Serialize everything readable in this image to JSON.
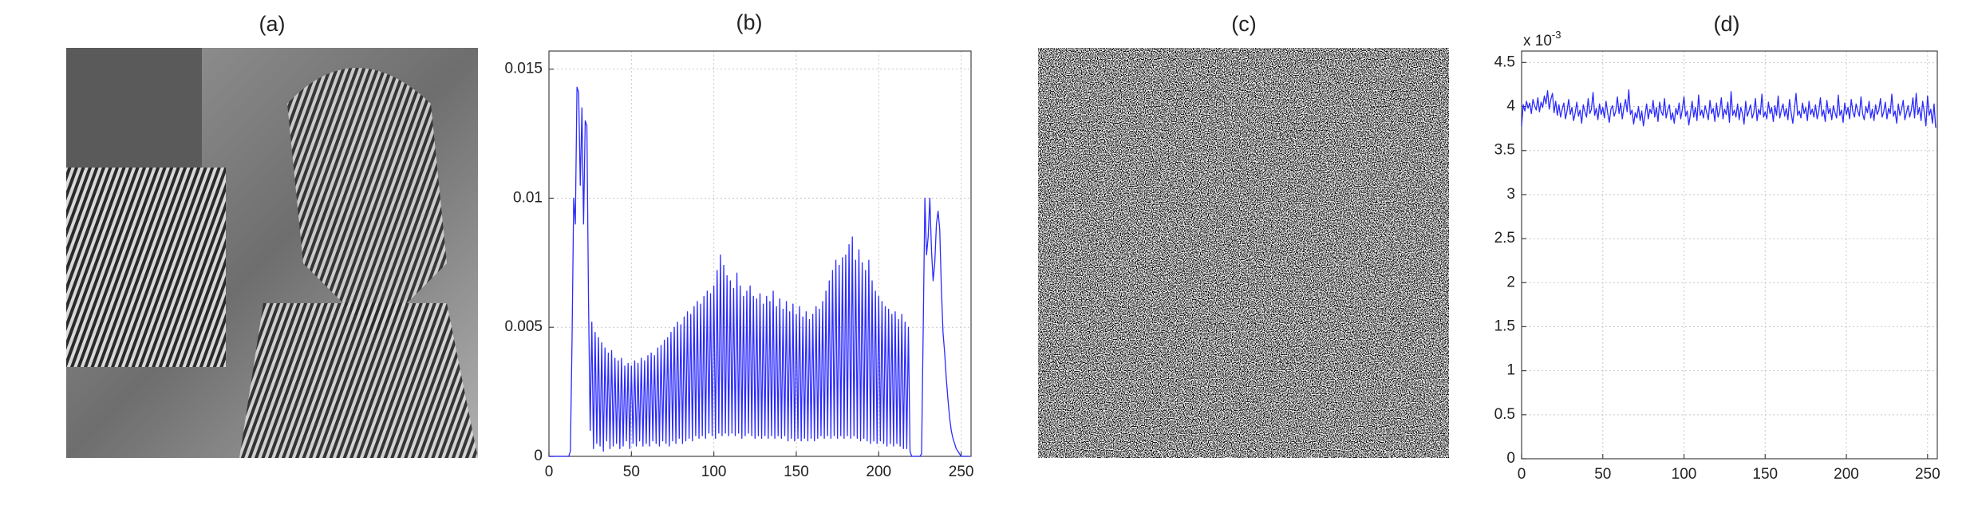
{
  "chart_data": [
    {
      "type": "image",
      "title": "(a)"
    },
    {
      "type": "line",
      "title": "(b)",
      "color": "#2b2bff",
      "grid": true,
      "xlim": [
        0,
        256
      ],
      "ylim": [
        0,
        0.0157
      ],
      "xticks": [
        0,
        50,
        100,
        150,
        200,
        250
      ],
      "yticks": [
        0,
        0.005,
        0.01,
        0.015
      ],
      "x": [
        0,
        1,
        2,
        3,
        4,
        5,
        6,
        7,
        8,
        9,
        10,
        11,
        12,
        13,
        14,
        15,
        16,
        17,
        18,
        19,
        20,
        21,
        22,
        23,
        24,
        25,
        26,
        27,
        28,
        29,
        30,
        31,
        32,
        33,
        34,
        35,
        36,
        37,
        38,
        39,
        40,
        41,
        42,
        43,
        44,
        45,
        46,
        47,
        48,
        49,
        50,
        51,
        52,
        53,
        54,
        55,
        56,
        57,
        58,
        59,
        60,
        61,
        62,
        63,
        64,
        65,
        66,
        67,
        68,
        69,
        70,
        71,
        72,
        73,
        74,
        75,
        76,
        77,
        78,
        79,
        80,
        81,
        82,
        83,
        84,
        85,
        86,
        87,
        88,
        89,
        90,
        91,
        92,
        93,
        94,
        95,
        96,
        97,
        98,
        99,
        100,
        101,
        102,
        103,
        104,
        105,
        106,
        107,
        108,
        109,
        110,
        111,
        112,
        113,
        114,
        115,
        116,
        117,
        118,
        119,
        120,
        121,
        122,
        123,
        124,
        125,
        126,
        127,
        128,
        129,
        130,
        131,
        132,
        133,
        134,
        135,
        136,
        137,
        138,
        139,
        140,
        141,
        142,
        143,
        144,
        145,
        146,
        147,
        148,
        149,
        150,
        151,
        152,
        153,
        154,
        155,
        156,
        157,
        158,
        159,
        160,
        161,
        162,
        163,
        164,
        165,
        166,
        167,
        168,
        169,
        170,
        171,
        172,
        173,
        174,
        175,
        176,
        177,
        178,
        179,
        180,
        181,
        182,
        183,
        184,
        185,
        186,
        187,
        188,
        189,
        190,
        191,
        192,
        193,
        194,
        195,
        196,
        197,
        198,
        199,
        200,
        201,
        202,
        203,
        204,
        205,
        206,
        207,
        208,
        209,
        210,
        211,
        212,
        213,
        214,
        215,
        216,
        217,
        218,
        219,
        220,
        221,
        222,
        223,
        224,
        225,
        226,
        227,
        228,
        229,
        230,
        231,
        232,
        233,
        234,
        235,
        236,
        237,
        238,
        239,
        240,
        241,
        242,
        243,
        244,
        245,
        246,
        247,
        248,
        249,
        250,
        251,
        252,
        253,
        254,
        255
      ],
      "values": [
        0,
        0,
        0,
        0,
        0,
        0,
        0,
        0,
        0,
        0,
        0,
        0,
        0,
        0.0002,
        0.0045,
        0.01,
        0.009,
        0.0143,
        0.0141,
        0.0105,
        0.0135,
        0.009,
        0.013,
        0.0128,
        0.006,
        0.001,
        0.0052,
        0.0003,
        0.0048,
        0.0005,
        0.0046,
        0.0004,
        0.0044,
        0.0002,
        0.0042,
        0.0006,
        0.004,
        0.0003,
        0.0041,
        0.0004,
        0.0038,
        0.0005,
        0.0037,
        0.0003,
        0.0038,
        0.0004,
        0.0035,
        0.0006,
        0.0036,
        0.0003,
        0.0035,
        0.0005,
        0.0037,
        0.0004,
        0.0036,
        0.0006,
        0.0038,
        0.0004,
        0.0037,
        0.0005,
        0.0039,
        0.0004,
        0.004,
        0.0006,
        0.0039,
        0.0005,
        0.0042,
        0.0004,
        0.0043,
        0.0006,
        0.0045,
        0.0005,
        0.0046,
        0.0004,
        0.0048,
        0.0006,
        0.005,
        0.0005,
        0.0052,
        0.0007,
        0.0051,
        0.0005,
        0.0054,
        0.0006,
        0.0056,
        0.0007,
        0.0055,
        0.0006,
        0.0058,
        0.0008,
        0.006,
        0.0007,
        0.0059,
        0.0008,
        0.0062,
        0.0007,
        0.0064,
        0.0009,
        0.0063,
        0.0008,
        0.0066,
        0.0007,
        0.0072,
        0.0009,
        0.0078,
        0.0008,
        0.0074,
        0.0009,
        0.007,
        0.0008,
        0.0068,
        0.0009,
        0.0065,
        0.0008,
        0.0071,
        0.0009,
        0.0066,
        0.0007,
        0.0062,
        0.0008,
        0.0064,
        0.0009,
        0.0066,
        0.0008,
        0.0062,
        0.0007,
        0.0061,
        0.0008,
        0.0063,
        0.0007,
        0.0059,
        0.0008,
        0.0062,
        0.0007,
        0.006,
        0.0008,
        0.0064,
        0.0007,
        0.0058,
        0.0008,
        0.0061,
        0.0007,
        0.0057,
        0.0008,
        0.006,
        0.0006,
        0.0056,
        0.0007,
        0.0059,
        0.0006,
        0.0055,
        0.0007,
        0.0058,
        0.0006,
        0.0054,
        0.0007,
        0.0056,
        0.0006,
        0.0053,
        0.0007,
        0.0055,
        0.0006,
        0.0058,
        0.0007,
        0.0057,
        0.0008,
        0.006,
        0.0007,
        0.0064,
        0.0008,
        0.0068,
        0.0007,
        0.0072,
        0.0008,
        0.0076,
        0.0007,
        0.0074,
        0.0008,
        0.0077,
        0.0007,
        0.0078,
        0.0008,
        0.0082,
        0.0007,
        0.0085,
        0.0008,
        0.0076,
        0.0007,
        0.008,
        0.0006,
        0.0075,
        0.0007,
        0.0072,
        0.0006,
        0.0076,
        0.0005,
        0.0068,
        0.0006,
        0.0064,
        0.0005,
        0.0062,
        0.0006,
        0.006,
        0.0005,
        0.0058,
        0.0004,
        0.0057,
        0.0005,
        0.0055,
        0.0004,
        0.0056,
        0.0005,
        0.0053,
        0.0004,
        0.0055,
        0.0003,
        0.0052,
        0.0003,
        0.005,
        0.0002,
        0,
        0,
        0,
        0,
        0,
        0,
        0.0001,
        0.005,
        0.01,
        0.0078,
        0.0085,
        0.01,
        0.008,
        0.0068,
        0.0075,
        0.009,
        0.0095,
        0.0088,
        0.0065,
        0.0048,
        0.004,
        0.003,
        0.0022,
        0.0015,
        0.001,
        0.0007,
        0.0005,
        0.0003,
        0.0002,
        0.0001,
        0,
        0,
        0,
        0,
        0,
        0
      ]
    },
    {
      "type": "image",
      "title": "(c)"
    },
    {
      "type": "line",
      "title": "(d)",
      "color": "#2b2bff",
      "grid": true,
      "y_multiplier": "x 10",
      "y_multiplier_exponent": "-3",
      "xlim": [
        0,
        256
      ],
      "ylim": [
        0,
        4.63
      ],
      "xticks": [
        0,
        50,
        100,
        150,
        200,
        250
      ],
      "yticks": [
        0,
        0.5,
        1,
        1.5,
        2,
        2.5,
        3,
        3.5,
        4,
        4.5
      ],
      "x": [
        0,
        1,
        2,
        3,
        4,
        5,
        6,
        7,
        8,
        9,
        10,
        11,
        12,
        13,
        14,
        15,
        16,
        17,
        18,
        19,
        20,
        21,
        22,
        23,
        24,
        25,
        26,
        27,
        28,
        29,
        30,
        31,
        32,
        33,
        34,
        35,
        36,
        37,
        38,
        39,
        40,
        41,
        42,
        43,
        44,
        45,
        46,
        47,
        48,
        49,
        50,
        51,
        52,
        53,
        54,
        55,
        56,
        57,
        58,
        59,
        60,
        61,
        62,
        63,
        64,
        65,
        66,
        67,
        68,
        69,
        70,
        71,
        72,
        73,
        74,
        75,
        76,
        77,
        78,
        79,
        80,
        81,
        82,
        83,
        84,
        85,
        86,
        87,
        88,
        89,
        90,
        91,
        92,
        93,
        94,
        95,
        96,
        97,
        98,
        99,
        100,
        101,
        102,
        103,
        104,
        105,
        106,
        107,
        108,
        109,
        110,
        111,
        112,
        113,
        114,
        115,
        116,
        117,
        118,
        119,
        120,
        121,
        122,
        123,
        124,
        125,
        126,
        127,
        128,
        129,
        130,
        131,
        132,
        133,
        134,
        135,
        136,
        137,
        138,
        139,
        140,
        141,
        142,
        143,
        144,
        145,
        146,
        147,
        148,
        149,
        150,
        151,
        152,
        153,
        154,
        155,
        156,
        157,
        158,
        159,
        160,
        161,
        162,
        163,
        164,
        165,
        166,
        167,
        168,
        169,
        170,
        171,
        172,
        173,
        174,
        175,
        176,
        177,
        178,
        179,
        180,
        181,
        182,
        183,
        184,
        185,
        186,
        187,
        188,
        189,
        190,
        191,
        192,
        193,
        194,
        195,
        196,
        197,
        198,
        199,
        200,
        201,
        202,
        203,
        204,
        205,
        206,
        207,
        208,
        209,
        210,
        211,
        212,
        213,
        214,
        215,
        216,
        217,
        218,
        219,
        220,
        221,
        222,
        223,
        224,
        225,
        226,
        227,
        228,
        229,
        230,
        231,
        232,
        233,
        234,
        235,
        236,
        237,
        238,
        239,
        240,
        241,
        242,
        243,
        244,
        245,
        246,
        247,
        248,
        249,
        250,
        251,
        252,
        253,
        254,
        255
      ],
      "values": [
        3.78,
        4.02,
        3.95,
        4.06,
        3.98,
        4.04,
        3.92,
        4.08,
        4.01,
        3.96,
        4.1,
        3.94,
        4.05,
        3.99,
        4.12,
        4.03,
        4.18,
        3.97,
        4.08,
        4.15,
        3.93,
        4.06,
        3.9,
        4.02,
        3.88,
        3.97,
        4.04,
        3.86,
        3.95,
        4.08,
        3.91,
        3.99,
        3.84,
        3.93,
        4.05,
        3.89,
        3.96,
        3.81,
        4.02,
        3.94,
        3.88,
        4.09,
        3.92,
        3.97,
        4.16,
        3.9,
        3.98,
        3.85,
        4.03,
        3.91,
        3.99,
        3.87,
        4.06,
        3.93,
        3.82,
        3.97,
        4.01,
        3.89,
        3.95,
        4.11,
        3.92,
        4.04,
        3.86,
        3.99,
        4.08,
        3.94,
        4.19,
        3.91,
        3.96,
        3.8,
        3.93,
        3.87,
        4.0,
        3.84,
        3.95,
        3.78,
        3.9,
        4.03,
        3.86,
        3.97,
        3.92,
        4.07,
        3.88,
        3.99,
        3.83,
        4.05,
        3.94,
        3.9,
        4.09,
        3.87,
        3.96,
        4.02,
        3.85,
        3.93,
        3.81,
        3.98,
        3.91,
        4.04,
        3.86,
        3.97,
        4.11,
        3.89,
        3.95,
        3.79,
        3.92,
        4.06,
        3.88,
        3.99,
        3.84,
        4.13,
        3.9,
        3.96,
        3.87,
        4.01,
        3.93,
        3.85,
        4.07,
        3.92,
        3.98,
        3.83,
        4.04,
        3.88,
        3.95,
        4.1,
        3.86,
        3.97,
        3.91,
        4.05,
        3.82,
        4.17,
        3.9,
        3.96,
        3.88,
        4.03,
        3.85,
        3.99,
        3.92,
        3.8,
        4.06,
        3.89,
        3.95,
        4.02,
        3.87,
        3.93,
        4.09,
        3.84,
        3.97,
        3.91,
        4.14,
        3.88,
        3.94,
        3.86,
        4.05,
        3.92,
        3.99,
        3.83,
        4.01,
        3.9,
        4.12,
        3.87,
        3.96,
        4.03,
        3.89,
        3.98,
        3.85,
        4.08,
        3.93,
        3.81,
        3.97,
        4.15,
        3.9,
        3.95,
        3.87,
        4.04,
        3.92,
        3.99,
        3.84,
        4.06,
        3.91,
        3.97,
        3.88,
        4.02,
        3.86,
        3.94,
        4.1,
        3.89,
        3.96,
        3.83,
        4.07,
        3.92,
        3.98,
        3.85,
        4.01,
        3.93,
        3.87,
        4.13,
        3.9,
        3.96,
        3.82,
        4.04,
        3.91,
        3.99,
        3.86,
        4.08,
        3.94,
        3.88,
        4.03,
        3.95,
        3.89,
        4.11,
        3.92,
        3.85,
        4.0,
        3.93,
        4.06,
        3.87,
        3.97,
        3.84,
        4.02,
        3.91,
        3.96,
        4.09,
        3.88,
        3.94,
        4.05,
        3.86,
        3.98,
        3.92,
        4.14,
        3.89,
        3.95,
        3.81,
        4.03,
        3.9,
        3.97,
        4.07,
        3.85,
        3.93,
        4.01,
        3.88,
        3.96,
        4.1,
        3.87,
        4.15,
        3.91,
        3.99,
        3.84,
        4.06,
        3.93,
        3.78,
        4.12,
        3.9,
        3.97,
        3.81,
        4.03,
        3.76
      ]
    }
  ]
}
